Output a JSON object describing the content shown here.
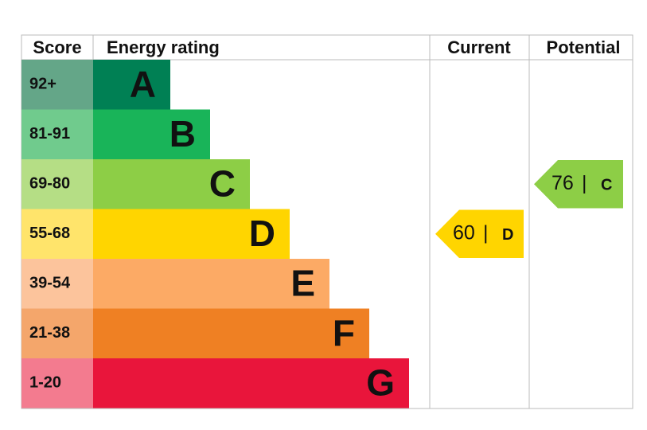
{
  "chart_data": {
    "type": "epc",
    "headers": [
      "Score",
      "Energy rating",
      "Current",
      "Potential"
    ],
    "bands": [
      {
        "score": "92+",
        "letter": "A",
        "color": "#008054",
        "score_color": "#64a688"
      },
      {
        "score": "81-91",
        "letter": "B",
        "color": "#19b459",
        "score_color": "#70cb8d"
      },
      {
        "score": "69-80",
        "letter": "C",
        "color": "#8dce46",
        "score_color": "#b5de85"
      },
      {
        "score": "55-68",
        "letter": "D",
        "color": "#ffd500",
        "score_color": "#ffe46b"
      },
      {
        "score": "39-54",
        "letter": "E",
        "color": "#fcaa65",
        "score_color": "#fcc49c"
      },
      {
        "score": "21-38",
        "letter": "F",
        "color": "#ef8023",
        "score_color": "#f4a66b"
      },
      {
        "score": "1-20",
        "letter": "G",
        "color": "#e9153b",
        "score_color": "#f37b8f"
      }
    ],
    "current": {
      "value": 60,
      "letter": "D"
    },
    "potential": {
      "value": 76,
      "letter": "C"
    }
  }
}
